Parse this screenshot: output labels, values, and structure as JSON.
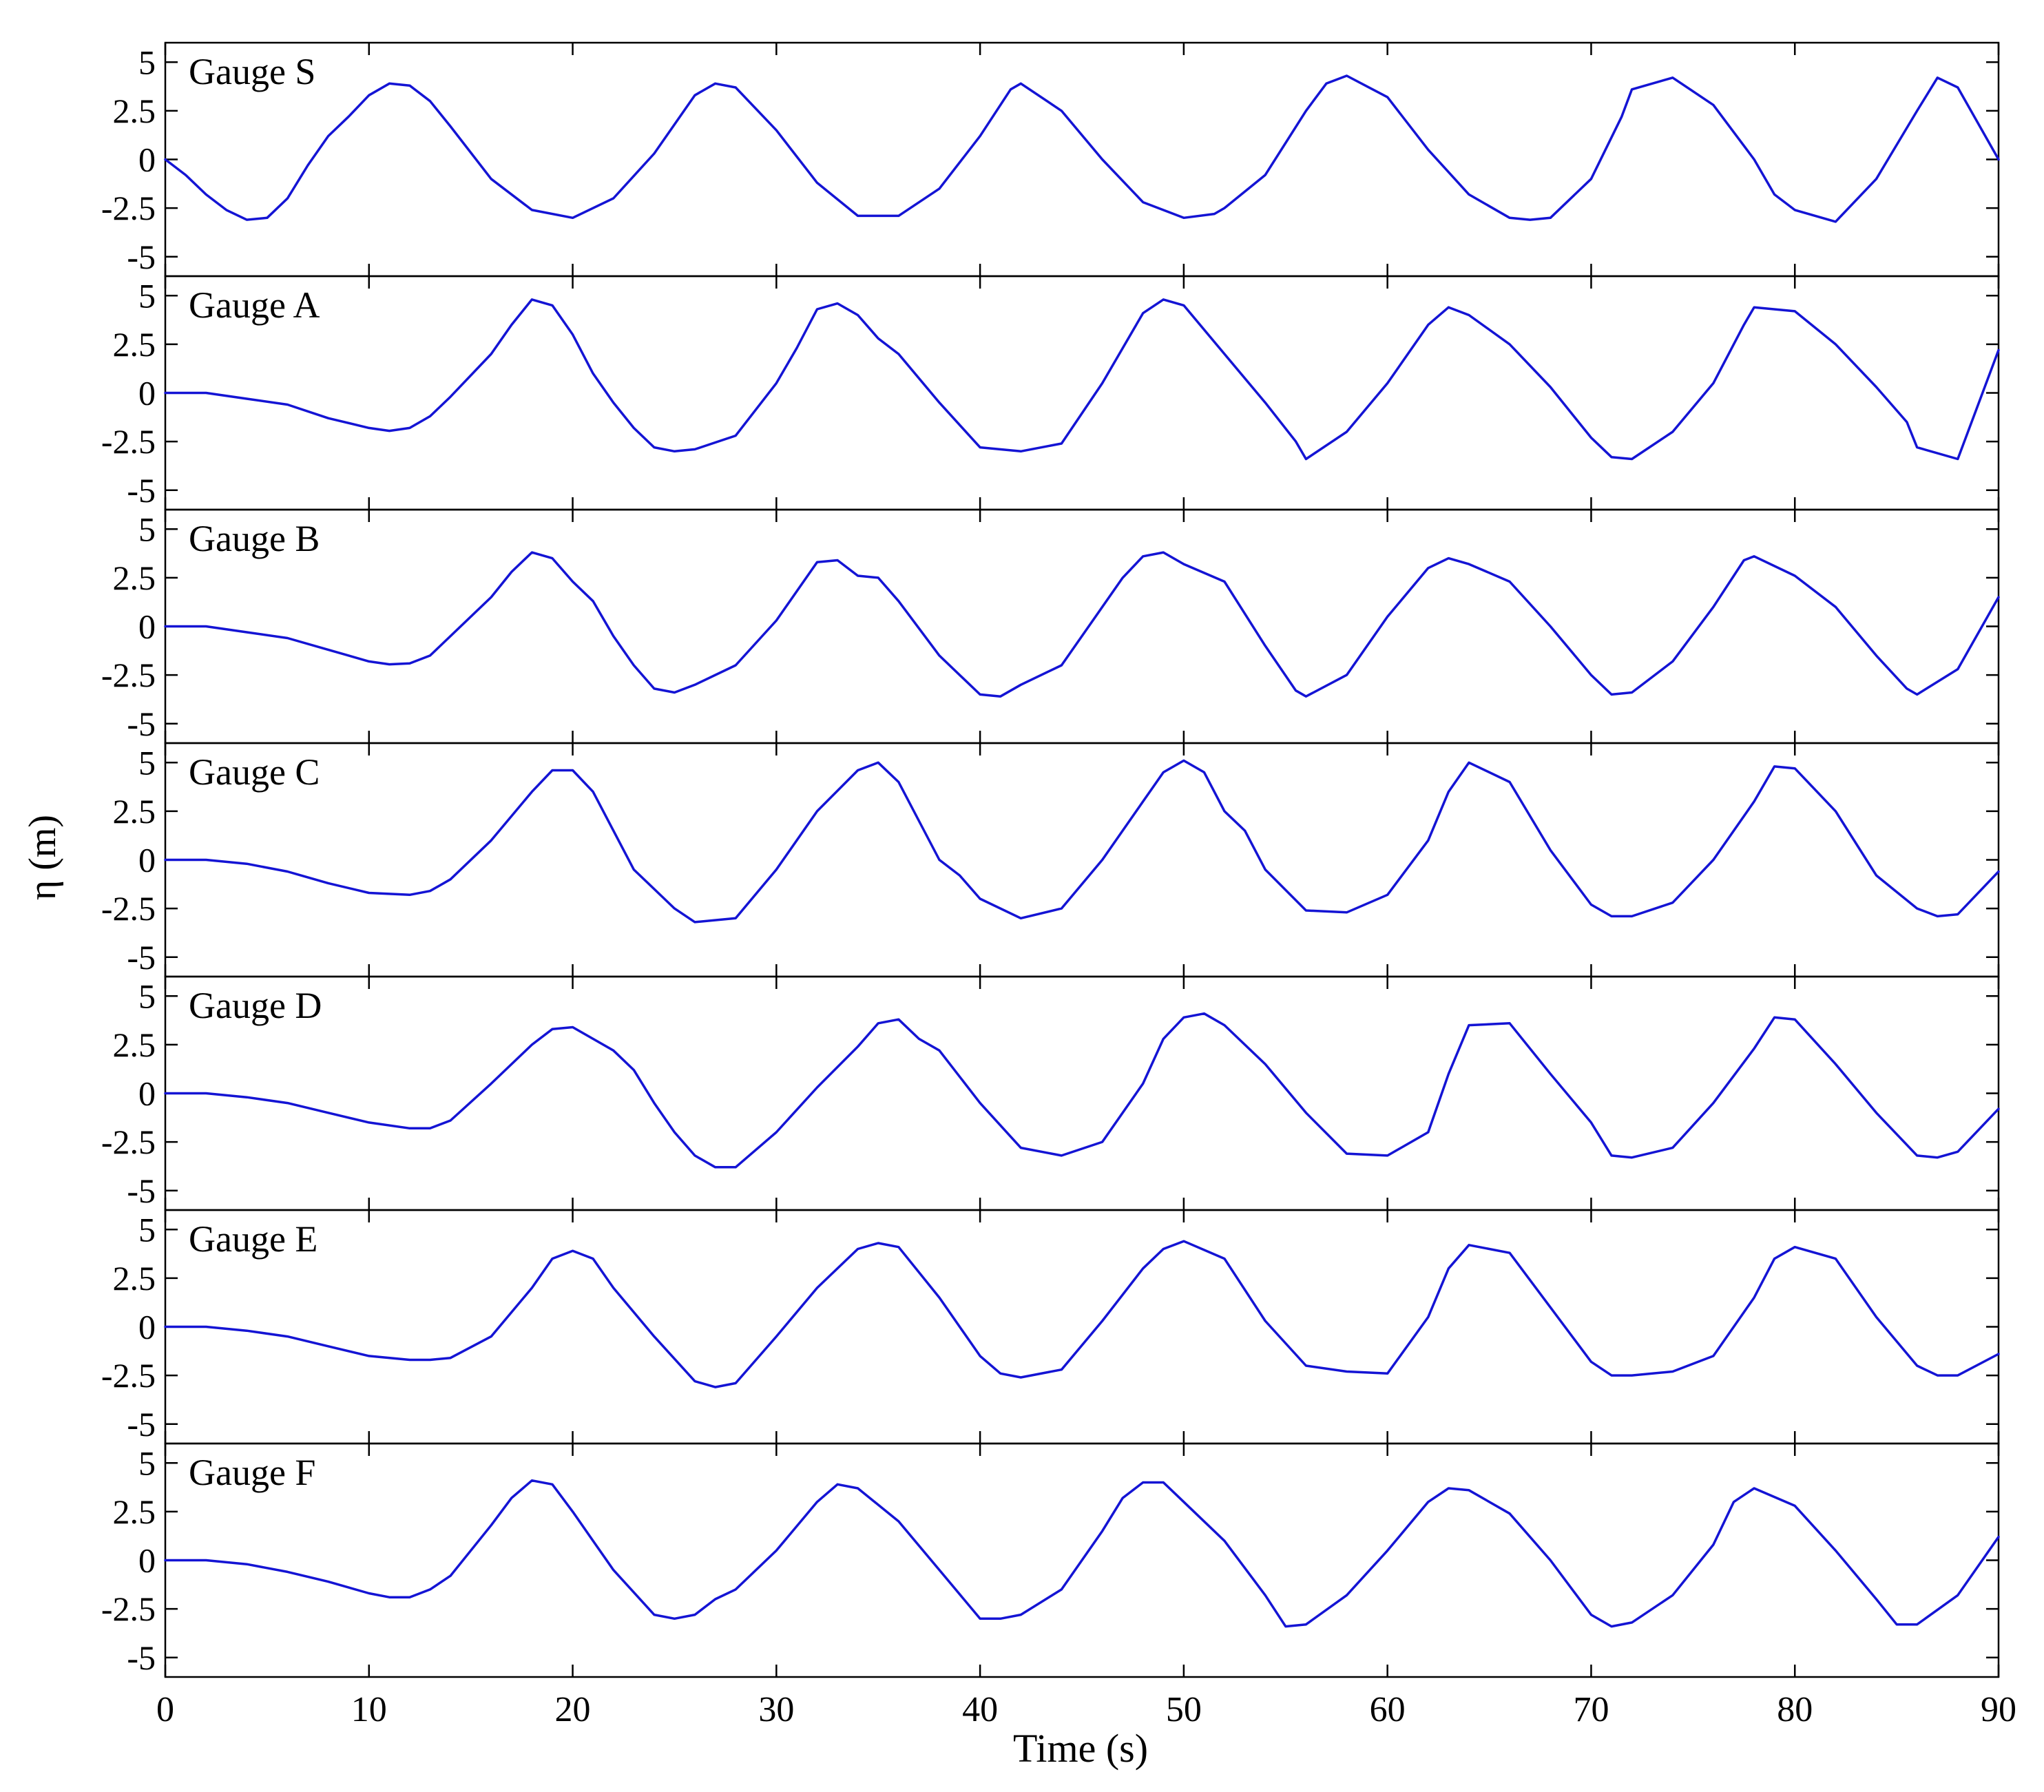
{
  "chart_data": {
    "type": "line",
    "xlabel": "Time (s)",
    "ylabel": "η (m)",
    "xlim": [
      0,
      90
    ],
    "ylim": [
      -6,
      6
    ],
    "x_ticks": [
      0,
      10,
      20,
      30,
      40,
      50,
      60,
      70,
      80,
      90
    ],
    "y_ticks": [
      5,
      2.5,
      0,
      -2.5,
      -5
    ],
    "y_tick_labels": [
      "5",
      "2.5",
      "0",
      "-2.5",
      "-5"
    ],
    "line_color": "#1414d4",
    "grid": false,
    "panels": [
      {
        "label": "Gauge S",
        "x": [
          0,
          1,
          2,
          3,
          4,
          5,
          6,
          7,
          8,
          9,
          10,
          11,
          12,
          13,
          14,
          16,
          18,
          20,
          22,
          24,
          26,
          27,
          28,
          30,
          32,
          34,
          36,
          38,
          40,
          41.5,
          42,
          44,
          46,
          48,
          50,
          51.5,
          52,
          54,
          56,
          57,
          58,
          60,
          62,
          64,
          66,
          67,
          68,
          70,
          71.5,
          72,
          74,
          76,
          78,
          79,
          80,
          82,
          84,
          86,
          87,
          88,
          90
        ],
        "y": [
          0,
          -0.8,
          -1.8,
          -2.6,
          -3.1,
          -3.0,
          -2.0,
          -0.3,
          1.2,
          2.2,
          3.3,
          3.9,
          3.8,
          3.0,
          1.7,
          -1.0,
          -2.6,
          -3.0,
          -2.0,
          0.3,
          3.3,
          3.9,
          3.7,
          1.5,
          -1.2,
          -2.9,
          -2.9,
          -1.5,
          1.2,
          3.6,
          3.9,
          2.5,
          0.0,
          -2.2,
          -3.0,
          -2.8,
          -2.5,
          -0.8,
          2.5,
          3.9,
          4.3,
          3.2,
          0.5,
          -1.8,
          -3.0,
          -3.1,
          -3.0,
          -1.0,
          2.2,
          3.6,
          4.2,
          2.8,
          0.0,
          -1.8,
          -2.6,
          -3.2,
          -1.0,
          2.5,
          4.2,
          3.7,
          0.0
        ]
      },
      {
        "label": "Gauge A",
        "x": [
          0,
          2,
          4,
          6,
          8,
          10,
          11,
          12,
          13,
          14,
          16,
          17,
          18,
          19,
          20,
          21,
          22,
          23,
          24,
          25,
          26,
          28,
          30,
          31,
          32,
          33,
          34,
          35,
          36,
          38,
          40,
          42,
          44,
          46,
          47,
          48,
          49,
          50,
          52,
          54,
          55.5,
          56,
          58,
          60,
          62,
          63,
          64,
          66,
          68,
          70,
          71,
          72,
          74,
          76,
          77.5,
          78,
          80,
          82,
          84,
          85.5,
          86,
          88,
          90
        ],
        "y": [
          0,
          0,
          -0.3,
          -0.6,
          -1.3,
          -1.8,
          -1.95,
          -1.8,
          -1.2,
          -0.2,
          2.0,
          3.5,
          4.8,
          4.5,
          3.0,
          1.0,
          -0.5,
          -1.8,
          -2.8,
          -3.0,
          -2.9,
          -2.2,
          0.5,
          2.3,
          4.3,
          4.6,
          4.0,
          2.8,
          2.0,
          -0.5,
          -2.8,
          -3.0,
          -2.6,
          0.5,
          2.3,
          4.1,
          4.8,
          4.5,
          2.0,
          -0.5,
          -2.5,
          -3.4,
          -2.0,
          0.5,
          3.5,
          4.4,
          4.0,
          2.5,
          0.3,
          -2.3,
          -3.3,
          -3.4,
          -2.0,
          0.5,
          3.5,
          4.4,
          4.2,
          2.5,
          0.3,
          -1.5,
          -2.8,
          -3.4,
          2.2
        ]
      },
      {
        "label": "Gauge B",
        "x": [
          0,
          2,
          4,
          6,
          8,
          10,
          11,
          12,
          13,
          14,
          16,
          17,
          18,
          19,
          20,
          21,
          22,
          23,
          24,
          25,
          26,
          28,
          30,
          31,
          32,
          33,
          34,
          35,
          36,
          38,
          40,
          41,
          42,
          44,
          46,
          47,
          48,
          49,
          50,
          52,
          54,
          55.5,
          56,
          58,
          60,
          62,
          63,
          64,
          66,
          68,
          70,
          71,
          72,
          74,
          76,
          77.5,
          78,
          80,
          82,
          84,
          85.5,
          86,
          88,
          90
        ],
        "y": [
          0,
          0,
          -0.3,
          -0.6,
          -1.2,
          -1.8,
          -1.95,
          -1.9,
          -1.5,
          -0.5,
          1.5,
          2.8,
          3.8,
          3.5,
          2.3,
          1.3,
          -0.5,
          -2.0,
          -3.2,
          -3.4,
          -3.0,
          -2.0,
          0.3,
          1.8,
          3.3,
          3.4,
          2.6,
          2.5,
          1.3,
          -1.5,
          -3.5,
          -3.6,
          -3.0,
          -2.0,
          1.0,
          2.5,
          3.6,
          3.8,
          3.2,
          2.3,
          -1.0,
          -3.3,
          -3.6,
          -2.5,
          0.5,
          3.0,
          3.5,
          3.2,
          2.3,
          0.0,
          -2.5,
          -3.5,
          -3.4,
          -1.8,
          1.0,
          3.4,
          3.6,
          2.6,
          1.0,
          -1.5,
          -3.2,
          -3.5,
          -2.2,
          1.5
        ]
      },
      {
        "label": "Gauge C",
        "x": [
          0,
          2,
          4,
          6,
          8,
          10,
          12,
          13,
          14,
          16,
          18,
          19,
          20,
          21,
          22,
          23,
          24,
          25,
          26,
          28,
          30,
          32,
          34,
          35,
          36,
          37,
          38,
          39,
          40,
          42,
          44,
          46,
          48,
          49,
          50,
          51,
          52,
          53,
          54,
          56,
          58,
          60,
          62,
          63,
          64,
          66,
          68,
          70,
          71,
          72,
          74,
          76,
          78,
          79,
          80,
          82,
          84,
          86,
          87,
          88,
          90
        ],
        "y": [
          0,
          0,
          -0.2,
          -0.6,
          -1.2,
          -1.7,
          -1.8,
          -1.6,
          -1.0,
          1.0,
          3.5,
          4.6,
          4.6,
          3.5,
          1.5,
          -0.5,
          -1.5,
          -2.5,
          -3.2,
          -3.0,
          -0.5,
          2.5,
          4.6,
          5.0,
          4.0,
          2.0,
          0.0,
          -0.8,
          -2.0,
          -3.0,
          -2.5,
          0.0,
          3.0,
          4.5,
          5.1,
          4.5,
          2.5,
          1.5,
          -0.5,
          -2.6,
          -2.7,
          -1.8,
          1.0,
          3.5,
          5.0,
          4.0,
          0.5,
          -2.3,
          -2.9,
          -2.9,
          -2.2,
          0.0,
          3.0,
          4.8,
          4.7,
          2.5,
          -0.8,
          -2.5,
          -2.9,
          -2.8,
          -0.6
        ]
      },
      {
        "label": "Gauge D",
        "x": [
          0,
          2,
          4,
          6,
          8,
          10,
          12,
          13,
          14,
          16,
          18,
          19,
          20,
          21,
          22,
          23,
          24,
          25,
          26,
          27,
          28,
          30,
          32,
          34,
          35,
          36,
          37,
          38,
          40,
          42,
          44,
          46,
          48,
          49,
          50,
          51,
          52,
          53,
          54,
          56,
          58,
          60,
          62,
          63,
          64,
          66,
          68,
          70,
          71,
          72,
          74,
          76,
          78,
          79,
          80,
          82,
          84,
          86,
          87,
          88,
          90
        ],
        "y": [
          0,
          0,
          -0.2,
          -0.5,
          -1.0,
          -1.5,
          -1.8,
          -1.8,
          -1.4,
          0.5,
          2.5,
          3.3,
          3.4,
          2.8,
          2.2,
          1.2,
          -0.5,
          -2.0,
          -3.2,
          -3.8,
          -3.8,
          -2.0,
          0.3,
          2.4,
          3.6,
          3.8,
          2.8,
          2.2,
          -0.5,
          -2.8,
          -3.2,
          -2.5,
          0.5,
          2.8,
          3.9,
          4.1,
          3.5,
          2.5,
          1.5,
          -1.0,
          -3.1,
          -3.2,
          -2.0,
          1.0,
          3.5,
          3.6,
          1.0,
          -1.5,
          -3.2,
          -3.3,
          -2.8,
          -0.5,
          2.3,
          3.9,
          3.8,
          1.5,
          -1.0,
          -3.2,
          -3.3,
          -3.0,
          -0.8
        ]
      },
      {
        "label": "Gauge E",
        "x": [
          0,
          2,
          4,
          6,
          8,
          10,
          12,
          13,
          14,
          16,
          18,
          19,
          20,
          21,
          22,
          24,
          26,
          27,
          28,
          30,
          32,
          34,
          35,
          36,
          38,
          40,
          41,
          42,
          44,
          46,
          48,
          49,
          50,
          52,
          54,
          56,
          58,
          60,
          62,
          63,
          64,
          66,
          68,
          70,
          71,
          72,
          74,
          76,
          78,
          79,
          80,
          82,
          84,
          86,
          87,
          88,
          90
        ],
        "y": [
          0,
          0,
          -0.2,
          -0.5,
          -1.0,
          -1.5,
          -1.7,
          -1.7,
          -1.6,
          -0.5,
          2.0,
          3.5,
          3.9,
          3.5,
          2.0,
          -0.5,
          -2.8,
          -3.1,
          -2.9,
          -0.5,
          2.0,
          4.0,
          4.3,
          4.1,
          1.5,
          -1.5,
          -2.4,
          -2.6,
          -2.2,
          0.3,
          3.0,
          4.0,
          4.4,
          3.5,
          0.3,
          -2.0,
          -2.3,
          -2.4,
          0.5,
          3.0,
          4.2,
          3.8,
          1.0,
          -1.8,
          -2.5,
          -2.5,
          -2.3,
          -1.5,
          1.5,
          3.5,
          4.1,
          3.5,
          0.5,
          -2.0,
          -2.5,
          -2.5,
          -1.4
        ]
      },
      {
        "label": "Gauge F",
        "x": [
          0,
          2,
          4,
          6,
          8,
          10,
          11,
          12,
          13,
          14,
          16,
          17,
          18,
          19,
          20,
          21,
          22,
          24,
          25,
          26,
          27,
          28,
          30,
          32,
          33,
          34,
          36,
          38,
          40,
          41,
          42,
          44,
          46,
          47,
          48,
          49,
          50,
          52,
          54,
          55,
          56,
          58,
          60,
          62,
          63,
          64,
          66,
          68,
          70,
          71,
          72,
          74,
          76,
          77,
          78,
          80,
          82,
          84,
          85,
          86,
          88,
          90
        ],
        "y": [
          0,
          0,
          -0.2,
          -0.6,
          -1.1,
          -1.7,
          -1.9,
          -1.9,
          -1.5,
          -0.8,
          1.8,
          3.2,
          4.1,
          3.9,
          2.5,
          1.0,
          -0.5,
          -2.8,
          -3.0,
          -2.8,
          -2.0,
          -1.5,
          0.5,
          3.0,
          3.9,
          3.7,
          2.0,
          -0.5,
          -3.0,
          -3.0,
          -2.8,
          -1.5,
          1.5,
          3.2,
          4.0,
          4.0,
          3.0,
          1.0,
          -1.8,
          -3.4,
          -3.3,
          -1.8,
          0.5,
          3.0,
          3.7,
          3.6,
          2.4,
          0.0,
          -2.8,
          -3.4,
          -3.2,
          -1.8,
          0.8,
          3.0,
          3.7,
          2.8,
          0.5,
          -2.0,
          -3.3,
          -3.3,
          -1.8,
          1.2
        ]
      }
    ]
  }
}
